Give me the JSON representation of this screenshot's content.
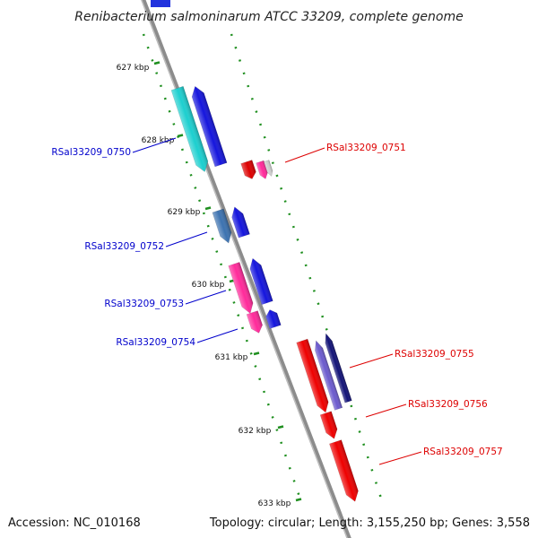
{
  "title": "Renibacterium salmoninarum ATCC 33209, complete genome",
  "footer": {
    "accession": "Accession: NC_010168",
    "summary": "Topology: circular; Length: 3,155,250 bp; Genes: 3,558"
  },
  "colors": {
    "backbone": "#8c8c8c",
    "ticks": "#1f8f1f",
    "forward_label": "#0000cc",
    "reverse_label": "#dd0000"
  },
  "kbp_ticks": [
    "627 kbp",
    "628 kbp",
    "629 kbp",
    "630 kbp",
    "631 kbp",
    "632 kbp",
    "633 kbp"
  ],
  "genes": [
    {
      "name": "RSal33209_0750",
      "strand": "forward"
    },
    {
      "name": "RSal33209_0751",
      "strand": "reverse"
    },
    {
      "name": "RSal33209_0752",
      "strand": "forward"
    },
    {
      "name": "RSal33209_0753",
      "strand": "forward"
    },
    {
      "name": "RSal33209_0754",
      "strand": "forward"
    },
    {
      "name": "RSal33209_0755",
      "strand": "reverse"
    },
    {
      "name": "RSal33209_0756",
      "strand": "reverse"
    },
    {
      "name": "RSal33209_0757",
      "strand": "reverse"
    }
  ]
}
